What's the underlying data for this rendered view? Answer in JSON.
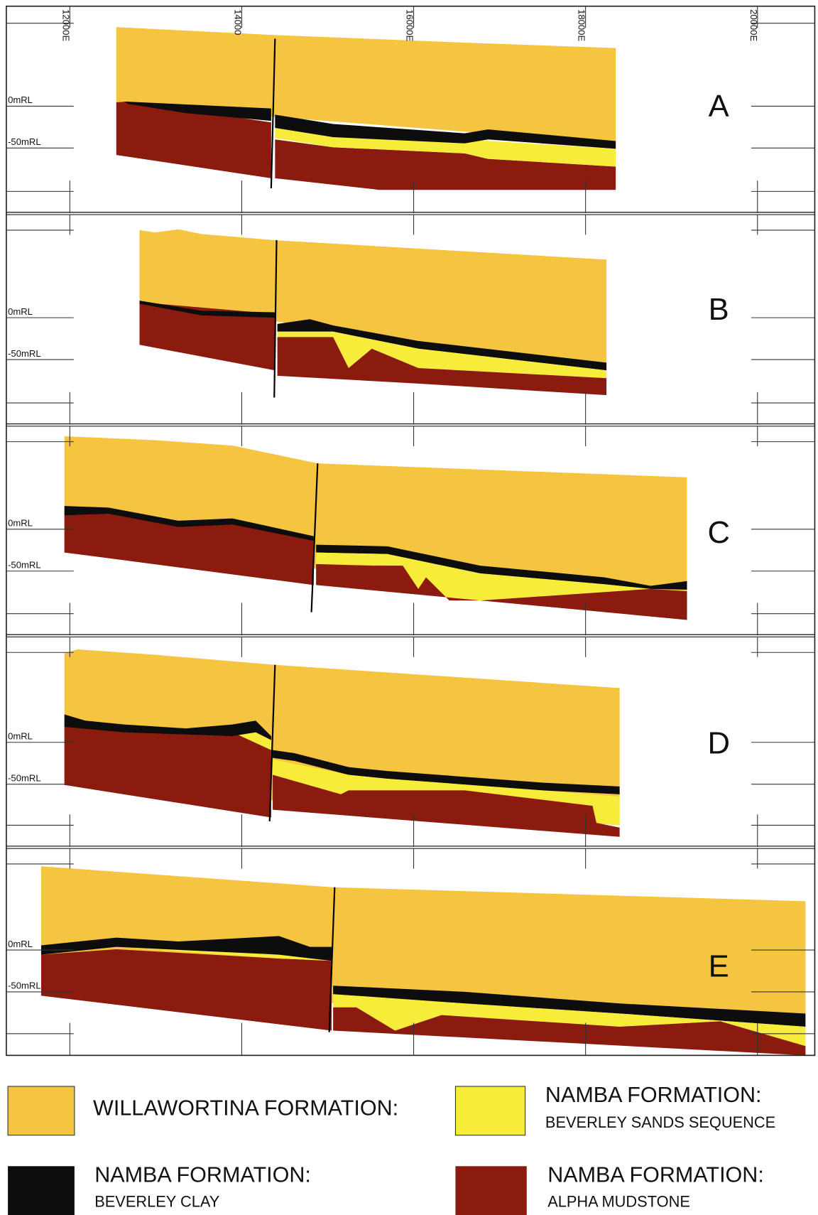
{
  "axis": {
    "easting_labels": [
      "12000E",
      "14000",
      "16000E",
      "18000E",
      "20000E"
    ]
  },
  "panels": [
    {
      "letter": "A",
      "rl_labels": [
        "0mRL",
        "-50mRL"
      ]
    },
    {
      "letter": "B",
      "rl_labels": [
        "0mRL",
        "-50mRL"
      ]
    },
    {
      "letter": "C",
      "rl_labels": [
        "0mRL",
        "-50mRL"
      ]
    },
    {
      "letter": "D",
      "rl_labels": [
        "0mRL",
        "-50mRL"
      ]
    },
    {
      "letter": "E",
      "rl_labels": [
        "0mRL",
        "-50mRL"
      ]
    }
  ],
  "legend": [
    {
      "title": "WILLAWORTINA FORMATION:"
    },
    {
      "title": "NAMBA FORMATION:",
      "subtitle": "BEVERLEY SANDS SEQUENCE"
    },
    {
      "title": "NAMBA FORMATION:",
      "subtitle": "BEVERLEY CLAY"
    },
    {
      "title": "NAMBA FORMATION:",
      "subtitle": "ALPHA MUDSTONE"
    }
  ]
}
